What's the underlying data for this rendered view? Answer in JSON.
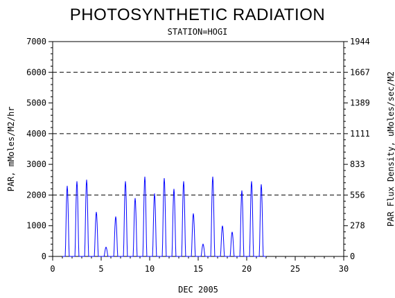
{
  "chart_data": {
    "type": "line",
    "title": "PHOTOSYNTHETIC RADIATION",
    "subtitle": "STATION=HOGI",
    "xlabel": "DEC 2005",
    "ylabel": "PAR, mMoles/M2/hr",
    "y2label": "PAR Flux Density, uMoles/sec/M2",
    "xlim": [
      0,
      30
    ],
    "ylim": [
      0,
      7000
    ],
    "x_ticks": [
      0,
      5,
      10,
      15,
      20,
      25,
      30
    ],
    "y_ticks": [
      0,
      1000,
      2000,
      3000,
      4000,
      5000,
      6000,
      7000
    ],
    "y2_ticks": [
      "0",
      "278",
      "556",
      "833",
      "1111",
      "1389",
      "1667",
      "1944"
    ],
    "grid_y": [
      2000,
      4000,
      6000
    ],
    "series_color": "#0000ff",
    "daily_peaks": [
      {
        "day": 1,
        "peak": 2300
      },
      {
        "day": 2,
        "peak": 2450
      },
      {
        "day": 3,
        "peak": 2500
      },
      {
        "day": 4,
        "peak": 1450
      },
      {
        "day": 5,
        "peak": 300
      },
      {
        "day": 6,
        "peak": 1300
      },
      {
        "day": 7,
        "peak": 2450
      },
      {
        "day": 8,
        "peak": 1900
      },
      {
        "day": 9,
        "peak": 2600
      },
      {
        "day": 10,
        "peak": 2050
      },
      {
        "day": 11,
        "peak": 2550
      },
      {
        "day": 12,
        "peak": 2200
      },
      {
        "day": 13,
        "peak": 2450
      },
      {
        "day": 14,
        "peak": 1400
      },
      {
        "day": 15,
        "peak": 400
      },
      {
        "day": 16,
        "peak": 2600
      },
      {
        "day": 17,
        "peak": 1000
      },
      {
        "day": 18,
        "peak": 800
      },
      {
        "day": 19,
        "peak": 2150
      },
      {
        "day": 20,
        "peak": 2450
      },
      {
        "day": 21,
        "peak": 2350
      }
    ]
  }
}
